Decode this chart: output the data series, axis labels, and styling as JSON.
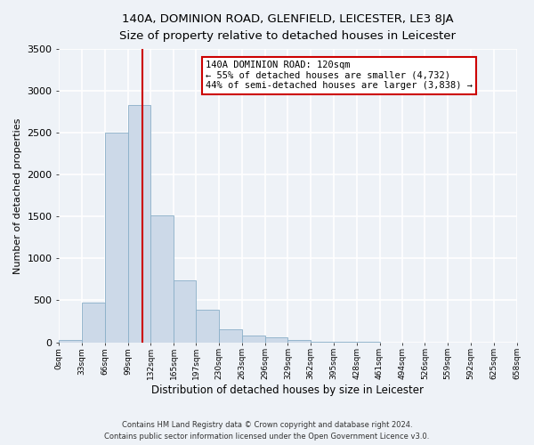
{
  "title_line1": "140A, DOMINION ROAD, GLENFIELD, LEICESTER, LE3 8JA",
  "title_line2": "Size of property relative to detached houses in Leicester",
  "xlabel": "Distribution of detached houses by size in Leicester",
  "ylabel": "Number of detached properties",
  "bar_color": "#ccd9e8",
  "bar_edge_color": "#8aafc8",
  "vline_x": 120,
  "vline_color": "#cc0000",
  "bin_edges": [
    0,
    33,
    66,
    99,
    132,
    165,
    197,
    230,
    263,
    296,
    329,
    362,
    395,
    428,
    461,
    494,
    526,
    559,
    592,
    625,
    658
  ],
  "bar_heights": [
    25,
    470,
    2500,
    2830,
    1510,
    740,
    390,
    150,
    80,
    55,
    30,
    10,
    5,
    2,
    0,
    0,
    0,
    0,
    0,
    0
  ],
  "tick_labels": [
    "0sqm",
    "33sqm",
    "66sqm",
    "99sqm",
    "132sqm",
    "165sqm",
    "197sqm",
    "230sqm",
    "263sqm",
    "296sqm",
    "329sqm",
    "362sqm",
    "395sqm",
    "428sqm",
    "461sqm",
    "494sqm",
    "526sqm",
    "559sqm",
    "592sqm",
    "625sqm",
    "658sqm"
  ],
  "annotation_text": "140A DOMINION ROAD: 120sqm\n← 55% of detached houses are smaller (4,732)\n44% of semi-detached houses are larger (3,838) →",
  "annotation_box_color": "#ffffff",
  "annotation_box_edge": "#cc0000",
  "ylim": [
    0,
    3500
  ],
  "footnote1": "Contains HM Land Registry data © Crown copyright and database right 2024.",
  "footnote2": "Contains public sector information licensed under the Open Government Licence v3.0.",
  "bg_color": "#eef2f7",
  "grid_color": "#ffffff",
  "figsize": [
    6.0,
    5.0
  ],
  "dpi": 100
}
